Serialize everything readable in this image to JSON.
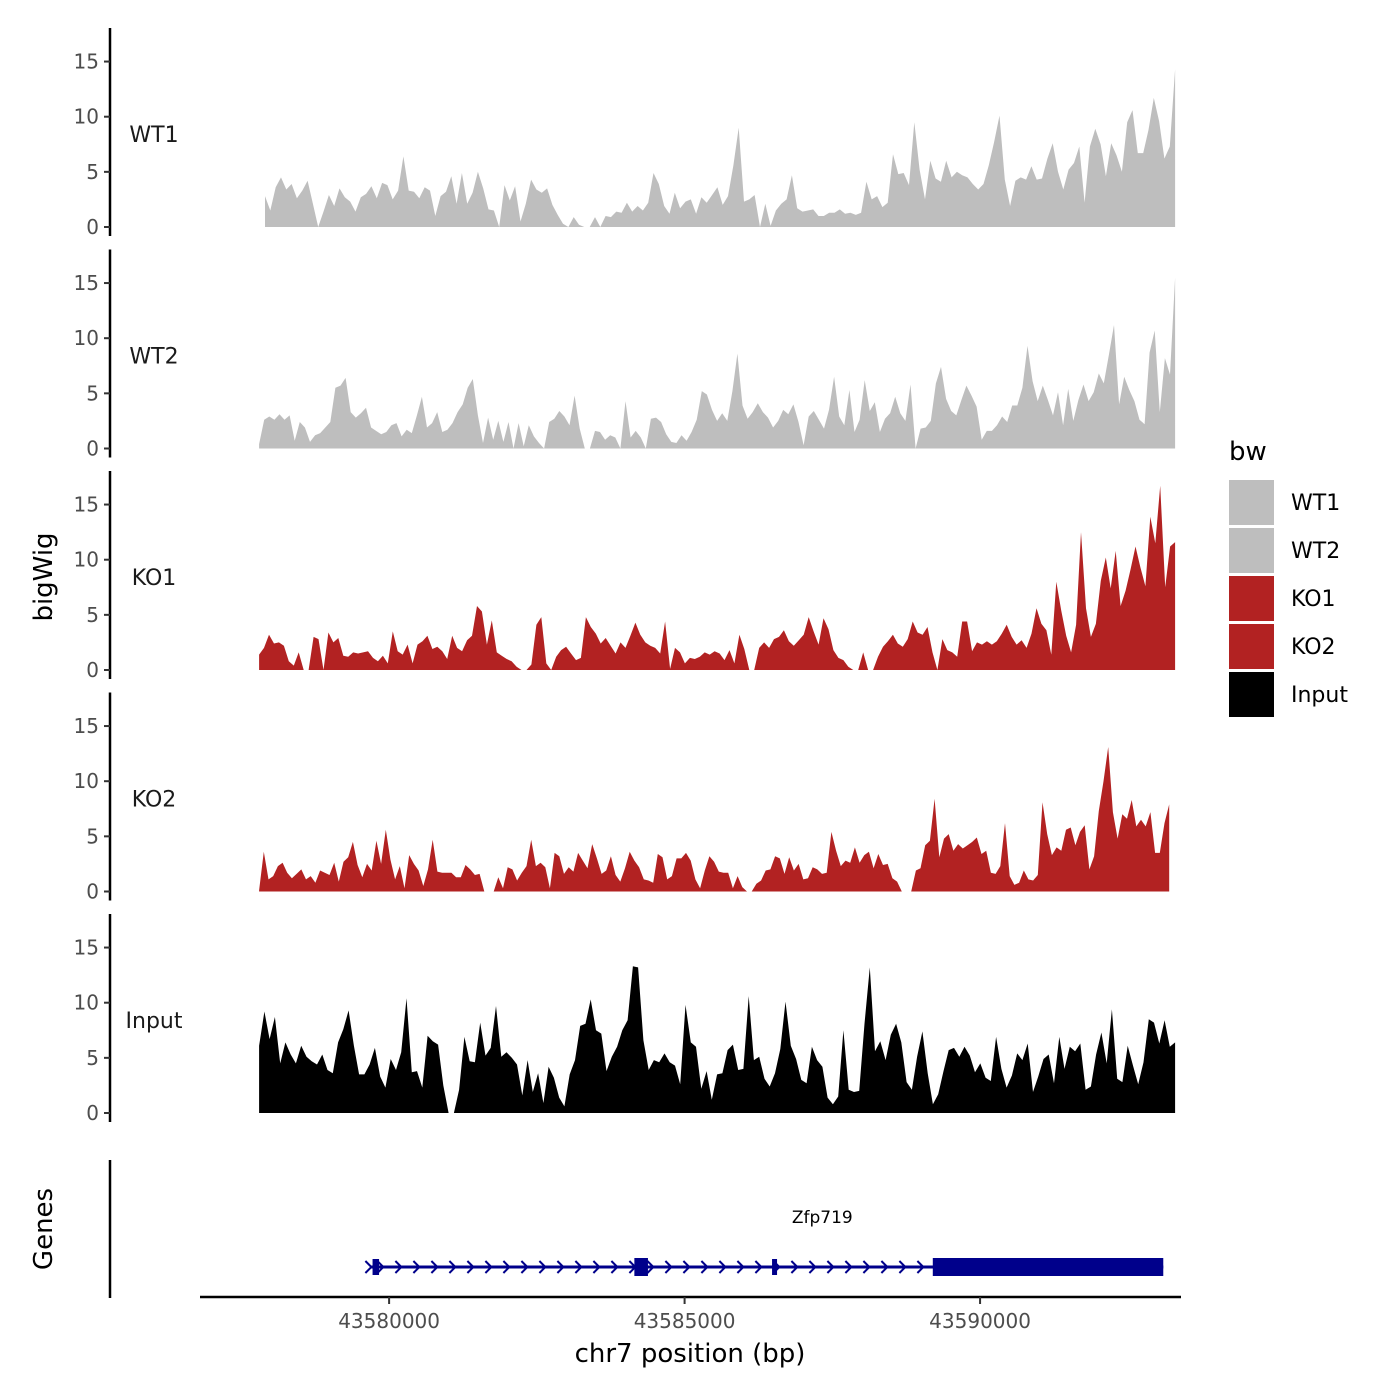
{
  "chart_data": {
    "type": "area",
    "subtype": "genome-browser-tracks",
    "chromosome": "chr7",
    "xlabel": "chr7 position (bp)",
    "ylabel_tracks": "bigWig",
    "ylabel_genes": "Genes",
    "xlim": [
      43576800,
      43593400
    ],
    "x_ticks": [
      43580000,
      43585000,
      43590000
    ],
    "x_tick_labels": [
      "43580000",
      "43585000",
      "43590000"
    ],
    "ylim": [
      0,
      17.5
    ],
    "y_ticks": [
      0,
      5,
      10,
      15
    ],
    "y_tick_labels": [
      "0",
      "5",
      "10",
      "15"
    ],
    "legend": {
      "title": "bw",
      "position": "right",
      "entries": [
        {
          "label": "WT1",
          "color": "#bebebe"
        },
        {
          "label": "WT2",
          "color": "#bebebe"
        },
        {
          "label": "KO1",
          "color": "#b22222"
        },
        {
          "label": "KO2",
          "color": "#b22222"
        },
        {
          "label": "Input",
          "color": "#000000"
        }
      ]
    },
    "series": [
      {
        "name": "WT1",
        "color": "#bebebe",
        "x_start": 43577900,
        "x_end": 43593300,
        "values": [
          2.8,
          1.5,
          3.6,
          4.5,
          3.4,
          3.9,
          2.6,
          3.3,
          4.2,
          2.1,
          0.0,
          1.4,
          2.9,
          1.9,
          3.5,
          2.7,
          2.3,
          1.4,
          2.7,
          3.0,
          3.7,
          2.6,
          4.0,
          3.8,
          2.5,
          3.3,
          6.4,
          3.3,
          3.2,
          2.6,
          3.6,
          3.3,
          1.0,
          2.8,
          3.2,
          4.6,
          2.1,
          4.9,
          2.1,
          3.1,
          5.0,
          3.5,
          1.6,
          1.5,
          0.0,
          3.8,
          2.4,
          3.7,
          0.5,
          2.1,
          4.3,
          3.4,
          3.1,
          3.5,
          2.0,
          1.1,
          0.3,
          0.0,
          0.9,
          0.2,
          0.0,
          0.0,
          0.9,
          0.0,
          1.0,
          0.9,
          1.4,
          1.3,
          2.2,
          1.4,
          1.9,
          1.5,
          2.2,
          4.9,
          3.9,
          1.9,
          1.2,
          3.1,
          1.7,
          2.3,
          2.5,
          1.2,
          2.7,
          2.2,
          2.9,
          3.6,
          2.0,
          2.8,
          5.6,
          9.0,
          2.3,
          2.5,
          2.9,
          0.0,
          2.1,
          0.1,
          1.5,
          2.1,
          2.5,
          4.7,
          1.7,
          1.4,
          1.5,
          1.6,
          1.0,
          1.0,
          1.3,
          1.3,
          1.6,
          1.2,
          1.3,
          1.1,
          1.3,
          4.1,
          2.5,
          2.8,
          1.8,
          2.2,
          6.6,
          4.8,
          4.9,
          3.8,
          9.5,
          5.2,
          2.5,
          6.0,
          4.4,
          4.1,
          6.0,
          4.5,
          5.0,
          4.7,
          4.5,
          3.9,
          3.4,
          3.9,
          5.6,
          7.7,
          10.1,
          4.3,
          1.9,
          4.2,
          4.5,
          4.3,
          5.5,
          4.3,
          4.4,
          6.2,
          7.6,
          5.0,
          3.4,
          5.2,
          5.8,
          7.3,
          2.2,
          7.3,
          8.9,
          7.5,
          4.6,
          7.6,
          6.5,
          5.0,
          9.5,
          10.6,
          6.7,
          6.7,
          8.8,
          11.7,
          9.6,
          6.2,
          7.3,
          14.3
        ]
      },
      {
        "name": "WT2",
        "color": "#bebebe",
        "x_start": 43577800,
        "x_end": 43593300,
        "values": [
          0.4,
          2.6,
          2.9,
          2.6,
          3.1,
          2.6,
          3.0,
          0.7,
          2.4,
          1.9,
          0.6,
          1.2,
          1.4,
          1.9,
          2.4,
          5.5,
          5.7,
          6.4,
          3.3,
          2.8,
          3.2,
          3.7,
          1.9,
          1.6,
          1.3,
          1.5,
          2.1,
          2.3,
          1.1,
          1.7,
          1.4,
          3.0,
          4.7,
          1.9,
          2.3,
          3.3,
          1.5,
          1.7,
          2.3,
          3.3,
          4.0,
          5.5,
          6.3,
          3.0,
          0.5,
          2.8,
          0.8,
          2.5,
          0.6,
          2.4,
          0.0,
          2.3,
          0.2,
          2.1,
          1.1,
          0.5,
          0.0,
          2.4,
          2.7,
          3.4,
          2.9,
          2.1,
          4.8,
          1.8,
          0.0,
          0.0,
          1.6,
          1.5,
          0.8,
          1.2,
          1.0,
          0.0,
          4.3,
          1.0,
          1.6,
          1.0,
          0.0,
          2.7,
          2.8,
          2.4,
          1.3,
          0.6,
          0.5,
          1.2,
          0.7,
          1.5,
          2.6,
          5.2,
          4.9,
          3.5,
          2.5,
          3.2,
          2.5,
          5.2,
          8.6,
          3.9,
          2.7,
          3.3,
          4.1,
          3.3,
          2.8,
          1.9,
          2.5,
          3.5,
          3.1,
          4.0,
          2.4,
          0.3,
          2.9,
          3.4,
          2.6,
          1.8,
          3.5,
          6.5,
          2.9,
          2.1,
          5.3,
          1.5,
          2.6,
          6.2,
          3.4,
          4.2,
          1.5,
          2.7,
          3.2,
          4.7,
          3.2,
          2.5,
          5.8,
          0.0,
          1.8,
          1.9,
          2.5,
          5.9,
          7.4,
          4.5,
          3.4,
          3.0,
          4.4,
          5.7,
          4.8,
          3.8,
          0.8,
          1.6,
          1.6,
          2.1,
          2.9,
          2.4,
          3.9,
          3.9,
          5.5,
          9.3,
          6.1,
          4.3,
          5.7,
          4.4,
          3.0,
          5.1,
          2.1,
          5.4,
          2.5,
          4.4,
          5.8,
          4.3,
          5.1,
          6.8,
          5.9,
          8.5,
          11.2,
          4.0,
          6.5,
          5.3,
          4.3,
          2.6,
          2.2,
          8.7,
          10.7,
          3.3,
          8.2,
          6.7,
          15.5
        ]
      },
      {
        "name": "KO1",
        "color": "#b22222",
        "x_start": 43577800,
        "x_end": 43593300,
        "values": [
          1.4,
          2.0,
          3.2,
          2.4,
          2.5,
          2.2,
          0.8,
          0.4,
          1.6,
          0.0,
          0.0,
          3.0,
          2.8,
          0.0,
          3.4,
          2.5,
          2.9,
          1.3,
          1.2,
          1.6,
          1.5,
          1.6,
          1.7,
          1.1,
          0.8,
          1.3,
          0.6,
          3.5,
          1.7,
          1.4,
          2.3,
          0.6,
          2.3,
          2.6,
          3.1,
          1.9,
          2.1,
          1.7,
          1.0,
          3.1,
          2.0,
          1.7,
          2.7,
          3.1,
          5.8,
          5.3,
          2.3,
          4.5,
          1.6,
          1.3,
          1.0,
          0.8,
          0.3,
          0.0,
          0.0,
          0.5,
          4.1,
          4.8,
          0.6,
          0.0,
          1.2,
          1.8,
          2.1,
          1.5,
          0.9,
          1.1,
          4.8,
          3.9,
          3.3,
          2.4,
          2.9,
          2.2,
          1.5,
          2.5,
          2.0,
          3.1,
          4.3,
          3.2,
          2.5,
          2.2,
          2.0,
          1.5,
          4.4,
          0.1,
          2.0,
          1.6,
          0.6,
          1.1,
          1.0,
          1.2,
          1.6,
          1.4,
          1.7,
          1.5,
          0.9,
          1.8,
          0.6,
          3.2,
          1.9,
          0.0,
          0.0,
          2.0,
          2.5,
          2.0,
          2.8,
          3.0,
          3.6,
          2.6,
          2.2,
          2.7,
          3.2,
          4.8,
          3.5,
          2.3,
          4.7,
          3.7,
          1.8,
          1.1,
          0.9,
          0.3,
          0.0,
          0.0,
          1.6,
          0.0,
          0.0,
          1.2,
          2.1,
          2.6,
          3.2,
          2.4,
          2.1,
          2.8,
          4.4,
          3.4,
          3.2,
          3.9,
          1.6,
          0.0,
          2.8,
          1.8,
          1.6,
          1.2,
          4.4,
          4.4,
          1.7,
          2.5,
          2.3,
          2.6,
          2.3,
          2.6,
          3.3,
          4.1,
          3.0,
          2.3,
          2.7,
          2.0,
          3.3,
          5.6,
          4.2,
          3.6,
          1.4,
          8.0,
          5.4,
          3.1,
          1.6,
          4.1,
          12.5,
          5.6,
          3.0,
          4.2,
          8.1,
          10.2,
          7.4,
          10.8,
          5.8,
          7.2,
          9.1,
          11.2,
          9.3,
          7.6,
          13.9,
          11.5,
          16.7,
          7.5,
          11.2,
          11.6
        ]
      },
      {
        "name": "KO2",
        "color": "#b22222",
        "x_start": 43577800,
        "x_end": 43593200,
        "values": [
          0.1,
          3.6,
          1.1,
          1.4,
          2.3,
          2.6,
          1.7,
          1.2,
          1.6,
          2.0,
          1.1,
          1.4,
          0.8,
          1.9,
          1.7,
          1.5,
          2.6,
          0.9,
          2.7,
          3.1,
          4.5,
          2.4,
          1.3,
          2.5,
          1.9,
          4.6,
          2.5,
          5.6,
          2.9,
          1.1,
          2.3,
          0.3,
          3.3,
          2.5,
          1.9,
          0.5,
          2.0,
          4.7,
          1.8,
          1.7,
          1.7,
          1.7,
          1.3,
          1.3,
          2.4,
          2.0,
          1.5,
          1.6,
          0.0,
          0.0,
          0.0,
          1.3,
          0.3,
          2.2,
          2.0,
          1.0,
          1.7,
          2.3,
          4.7,
          2.3,
          2.6,
          2.2,
          0.3,
          3.5,
          3.2,
          1.6,
          2.2,
          1.8,
          3.5,
          2.8,
          2.1,
          4.3,
          3.0,
          1.6,
          1.9,
          3.2,
          1.5,
          0.9,
          2.1,
          3.6,
          2.8,
          2.2,
          1.1,
          1.0,
          0.8,
          3.4,
          3.1,
          1.1,
          1.4,
          3.0,
          3.0,
          3.5,
          2.8,
          1.1,
          0.3,
          1.9,
          3.2,
          2.7,
          1.8,
          1.7,
          1.7,
          0.3,
          1.4,
          0.4,
          0.0,
          0.0,
          0.7,
          1.0,
          1.9,
          2.0,
          3.2,
          3.0,
          1.6,
          3.1,
          1.9,
          2.5,
          1.1,
          1.2,
          2.2,
          2.0,
          1.6,
          1.7,
          5.4,
          3.7,
          2.3,
          2.8,
          2.6,
          4.0,
          2.6,
          3.3,
          3.6,
          2.1,
          3.4,
          2.4,
          2.5,
          1.2,
          0.9,
          0.0,
          0.0,
          0.0,
          1.9,
          2.1,
          4.2,
          4.6,
          8.4,
          3.1,
          4.8,
          5.2,
          3.7,
          4.3,
          3.9,
          4.2,
          4.5,
          4.9,
          3.4,
          3.7,
          1.7,
          1.6,
          2.3,
          6.2,
          1.4,
          0.6,
          0.8,
          1.9,
          1.1,
          1.0,
          1.5,
          8.1,
          5.2,
          3.3,
          4.0,
          3.7,
          5.6,
          5.8,
          4.2,
          5.4,
          6.0,
          2.0,
          3.2,
          7.3,
          10.0,
          13.1,
          7.2,
          4.8,
          7.0,
          6.6,
          8.3,
          5.9,
          6.5,
          5.9,
          7.2,
          3.5,
          3.5,
          6.2,
          7.9
        ]
      },
      {
        "name": "Input",
        "color": "#000000",
        "x_start": 43577800,
        "x_end": 43593300,
        "values": [
          6.1,
          9.2,
          6.7,
          8.7,
          4.5,
          6.4,
          5.3,
          4.5,
          6.1,
          5.1,
          4.7,
          4.4,
          5.3,
          3.9,
          3.6,
          6.4,
          7.6,
          9.3,
          6.1,
          3.5,
          3.5,
          4.4,
          5.9,
          3.3,
          2.3,
          4.9,
          3.9,
          5.5,
          10.4,
          3.7,
          3.8,
          2.3,
          7.0,
          6.5,
          6.2,
          2.5,
          0.0,
          0.0,
          2.1,
          6.9,
          4.7,
          4.6,
          8.2,
          5.2,
          5.9,
          9.7,
          5.1,
          5.5,
          5.0,
          4.4,
          1.6,
          4.8,
          1.9,
          3.6,
          0.9,
          4.2,
          3.2,
          1.4,
          0.6,
          3.5,
          4.8,
          7.9,
          8.1,
          10.3,
          7.5,
          7.2,
          3.8,
          5.1,
          6.0,
          7.5,
          8.4,
          13.3,
          13.2,
          6.6,
          3.9,
          4.8,
          4.6,
          5.4,
          4.6,
          4.3,
          2.6,
          9.8,
          6.4,
          6.0,
          2.2,
          3.8,
          1.2,
          3.5,
          3.6,
          5.7,
          6.2,
          3.9,
          4.0,
          10.6,
          4.8,
          5.1,
          3.1,
          2.4,
          3.6,
          5.8,
          10.1,
          6.1,
          4.9,
          3.0,
          2.7,
          6.0,
          4.8,
          4.2,
          1.4,
          0.8,
          1.5,
          7.5,
          2.1,
          1.9,
          2.0,
          8.1,
          13.2,
          5.6,
          6.5,
          4.8,
          7.1,
          8.1,
          6.4,
          2.8,
          2.1,
          5.1,
          7.4,
          3.6,
          0.8,
          1.7,
          3.8,
          5.7,
          5.9,
          5.1,
          6.0,
          5.2,
          3.7,
          4.5,
          3.2,
          2.9,
          6.9,
          4.0,
          2.3,
          3.4,
          5.4,
          4.8,
          6.3,
          1.9,
          3.3,
          4.9,
          5.3,
          2.7,
          6.9,
          4.0,
          6.0,
          5.6,
          6.3,
          2.1,
          2.4,
          5.3,
          7.3,
          4.5,
          9.4,
          3.1,
          2.8,
          6.1,
          4.3,
          2.6,
          4.6,
          8.5,
          8.2,
          6.3,
          8.4,
          6.0,
          6.4
        ]
      }
    ],
    "genes": [
      {
        "name": "Zfp719",
        "strand": "+",
        "start": 43579700,
        "end": 43593100,
        "exons": [
          {
            "start": 43579720,
            "end": 43579830
          },
          {
            "start": 43584150,
            "end": 43584380
          },
          {
            "start": 43586480,
            "end": 43586560
          },
          {
            "start": 43589200,
            "end": 43593100
          }
        ]
      }
    ]
  }
}
